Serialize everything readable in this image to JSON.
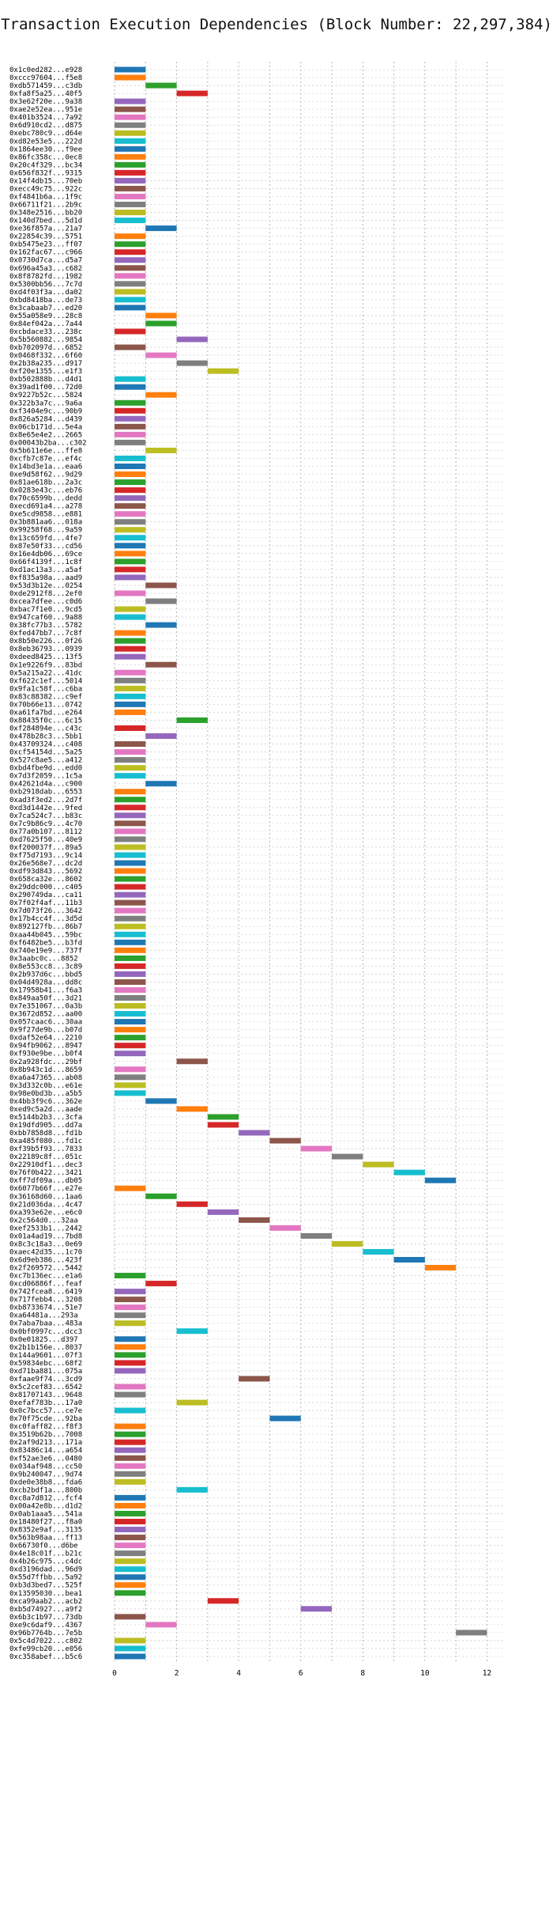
{
  "chart_data": {
    "type": "bar",
    "orientation": "horizontal",
    "title": "Transaction Execution Dependencies (Block Number: 22,297,384)",
    "xlabel": "",
    "ylabel": "",
    "xlim": [
      0,
      12.6
    ],
    "xticks": [
      0,
      2,
      4,
      6,
      8,
      10,
      12
    ],
    "grid": "vertical dotted",
    "legend": "none",
    "palette": [
      "#1f77b4",
      "#ff7f0e",
      "#2ca02c",
      "#d62728",
      "#9467bd",
      "#8c564b",
      "#e377c2",
      "#7f7f7f",
      "#bcbd22",
      "#17becf"
    ],
    "rows": [
      [
        "0x1c0ed282...e928",
        0
      ],
      [
        "0xccc97604...f5e8",
        0
      ],
      [
        "0xdb571459...c3db",
        1
      ],
      [
        "0xfa8f5a25...40f5",
        2
      ],
      [
        "0x3e62f20e...9a38",
        0
      ],
      [
        "0xae2e52ea...951e",
        0
      ],
      [
        "0x401b3524...7a92",
        0
      ],
      [
        "0x6d910cd2...d875",
        0
      ],
      [
        "0xebc780c9...d64e",
        0
      ],
      [
        "0xd82e53e5...222d",
        0
      ],
      [
        "0x1864ee30...f9ee",
        0
      ],
      [
        "0x86fc358c...0ec8",
        0
      ],
      [
        "0x20c4f329...bc34",
        0
      ],
      [
        "0x656f832f...9315",
        0
      ],
      [
        "0x14f4db15...70eb",
        0
      ],
      [
        "0xecc49c75...922c",
        0
      ],
      [
        "0xf4841b6a...1f9c",
        0
      ],
      [
        "0x66711f21...2b9c",
        0
      ],
      [
        "0x348e2516...bb20",
        0
      ],
      [
        "0x140d7bed...5d1d",
        0
      ],
      [
        "0xe36f857a...21a7",
        1
      ],
      [
        "0x22854c39...5751",
        0
      ],
      [
        "0xb5475e23...ff07",
        0
      ],
      [
        "0x162fac67...c966",
        0
      ],
      [
        "0x0730d7ca...d5a7",
        0
      ],
      [
        "0x696a45a3...c682",
        0
      ],
      [
        "0x8f8782fd...1982",
        0
      ],
      [
        "0x5300bb56...7c7d",
        0
      ],
      [
        "0xd4f03f3a...da02",
        0
      ],
      [
        "0xbd8418ba...de73",
        0
      ],
      [
        "0x3cabaab7...ed20",
        0
      ],
      [
        "0x55a058e9...28c8",
        1
      ],
      [
        "0x84ef042a...7a44",
        1
      ],
      [
        "0xcbdace33...238c",
        0
      ],
      [
        "0x5b560882...9854",
        2
      ],
      [
        "0xb702097d...6852",
        0
      ],
      [
        "0x0468f332...6f60",
        1
      ],
      [
        "0x2b38a235...d917",
        2
      ],
      [
        "0xf20e1355...e1f3",
        3
      ],
      [
        "0xb502888b...d4d1",
        0
      ],
      [
        "0x39ad1f00...72d0",
        0
      ],
      [
        "0x9227b52c...5824",
        1
      ],
      [
        "0x322b3a7c...9a6a",
        0
      ],
      [
        "0xf3404e9c...90b9",
        0
      ],
      [
        "0x826a5284...d439",
        0
      ],
      [
        "0x06cb171d...5e4a",
        0
      ],
      [
        "0x8e65e4e2...2665",
        0
      ],
      [
        "0x00043b2ba...c302",
        0
      ],
      [
        "0x5b611e6e...ffe8",
        1
      ],
      [
        "0xcfb7c87e...ef4c",
        0
      ],
      [
        "0x14bd3e1a...eaa6",
        0
      ],
      [
        "0xe9d58f62...9d29",
        0
      ],
      [
        "0x81ae618b...2a3c",
        0
      ],
      [
        "0x0283e43c...eb76",
        0
      ],
      [
        "0x70c6599b...dedd",
        0
      ],
      [
        "0xecd691a4...a278",
        0
      ],
      [
        "0xe5cd9858...e881",
        0
      ],
      [
        "0x3b881aa6...018a",
        0
      ],
      [
        "0x99258f68...9a59",
        0
      ],
      [
        "0x13c659fd...4fe7",
        0
      ],
      [
        "0x87e50f33...cd56",
        0
      ],
      [
        "0x16e4db06...69ce",
        0
      ],
      [
        "0x66f4139f...1c8f",
        0
      ],
      [
        "0xd1ac13a3...a5af",
        0
      ],
      [
        "0xf835a98a...aad9",
        0
      ],
      [
        "0x53d3b12e...0254",
        1
      ],
      [
        "0xde2912f8...2ef0",
        0
      ],
      [
        "0xcea7dfee...c0d6",
        1
      ],
      [
        "0xbac7f1e0...9cd5",
        0
      ],
      [
        "0x947caf60...9a88",
        0
      ],
      [
        "0x38fc77b3...5782",
        1
      ],
      [
        "0xfed47bb7...7c8f",
        0
      ],
      [
        "0x8b50e226...0f26",
        0
      ],
      [
        "0x8eb36793...0939",
        0
      ],
      [
        "0xdeed8425...13f5",
        0
      ],
      [
        "0x1e9226f9...83bd",
        1
      ],
      [
        "0x5a215a22...41dc",
        0
      ],
      [
        "0xf622c1ef...5014",
        0
      ],
      [
        "0x9fa1c58f...c6ba",
        0
      ],
      [
        "0x83c88382...c9ef",
        0
      ],
      [
        "0x70b66e13...0742",
        0
      ],
      [
        "0xa61fa7bd...e264",
        0
      ],
      [
        "0x88435f0c...6c15",
        2
      ],
      [
        "0xf284894e...c43c",
        0
      ],
      [
        "0x478b28c3...5bb1",
        1
      ],
      [
        "0x43709324...c408",
        0
      ],
      [
        "0xcf54154d...5a25",
        0
      ],
      [
        "0x527c8ae5...a412",
        0
      ],
      [
        "0xbd4fbe9d...edd0",
        0
      ],
      [
        "0x7d3f2059...1c5a",
        0
      ],
      [
        "0x42621d4a...c900",
        1
      ],
      [
        "0xb2918dab...6553",
        0
      ],
      [
        "0xad3f3ed2...2d7f",
        0
      ],
      [
        "0xd3d1442e...9fed",
        0
      ],
      [
        "0x7ca524c7...b83c",
        0
      ],
      [
        "0x7c9b86c9...4c70",
        0
      ],
      [
        "0x77a0b107...8112",
        0
      ],
      [
        "0xd7625f50...40e9",
        0
      ],
      [
        "0xf200037f...89a5",
        0
      ],
      [
        "0xf75d7193...9c14",
        0
      ],
      [
        "0x26e568e7...dc2d",
        0
      ],
      [
        "0xdf93d843...5692",
        0
      ],
      [
        "0x658ca32e...8602",
        0
      ],
      [
        "0x29ddc000...c405",
        0
      ],
      [
        "0x290749da...ca11",
        0
      ],
      [
        "0x7f02f4af...11b3",
        0
      ],
      [
        "0x7d073f26...3642",
        0
      ],
      [
        "0x17b4cc4f...3d5d",
        0
      ],
      [
        "0x892127fb...86b7",
        0
      ],
      [
        "0xaa44b045...59bc",
        0
      ],
      [
        "0xf6482be5...b3fd",
        0
      ],
      [
        "0x740e19e9...737f",
        0
      ],
      [
        "0x3aabc0c...8852",
        0
      ],
      [
        "0x8e553cc8...3c89",
        0
      ],
      [
        "0x2b937d6c...bbd5",
        0
      ],
      [
        "0x04d4928a...dd8c",
        0
      ],
      [
        "0x17958b41...f6a3",
        0
      ],
      [
        "0x849aa50f...3d21",
        0
      ],
      [
        "0x7e351067...0a3b",
        0
      ],
      [
        "0x3672d852...aa00",
        0
      ],
      [
        "0x057caac6...30aa",
        0
      ],
      [
        "0x9f27de9b...b07d",
        0
      ],
      [
        "0xdaf52e64...2210",
        0
      ],
      [
        "0x94fb9062...8947",
        0
      ],
      [
        "0xf930e9be...b0f4",
        0
      ],
      [
        "0x2a928fdc...29bf",
        2
      ],
      [
        "0x8b943c1d...8659",
        0
      ],
      [
        "0xa6a47365...ab08",
        0
      ],
      [
        "0x3d332c0b...e61e",
        0
      ],
      [
        "0x98e0bd3b...a5b5",
        0
      ],
      [
        "0x4bb3f9c6...362e",
        1
      ],
      [
        "0xed9c5a2d...aade",
        2
      ],
      [
        "0x5144b2b3...3cfa",
        3
      ],
      [
        "0x19dfd905...dd7a",
        3
      ],
      [
        "0xbb7858d8...fd1b",
        4
      ],
      [
        "0xa485f080...fd1c",
        5
      ],
      [
        "0xf39b5f93...7833",
        6
      ],
      [
        "0x22189c8f...051c",
        7
      ],
      [
        "0x22910df1...dec3",
        8
      ],
      [
        "0x76f0b422...3421",
        9
      ],
      [
        "0xff7df09a...db05",
        10
      ],
      [
        "0x6077b66f...e27e",
        0
      ],
      [
        "0x36168d60...1aa6",
        1
      ],
      [
        "0x21d036da...4c47",
        2
      ],
      [
        "0xa393e62e...e6c0",
        3
      ],
      [
        "0x2c564d0...32aa",
        4
      ],
      [
        "0xef2533b1...2442",
        5
      ],
      [
        "0x01a4ad19...7bd8",
        6
      ],
      [
        "0x8c3c18a3...0e69",
        7
      ],
      [
        "0xaec42d35...1c70",
        8
      ],
      [
        "0x6d9eb386...423f",
        9
      ],
      [
        "0x2f269572...5442",
        10
      ],
      [
        "0xc7b136ec...e1a6",
        0
      ],
      [
        "0xcd06886f...feaf",
        1
      ],
      [
        "0x742fcea8...6419",
        0
      ],
      [
        "0x717febb4...3208",
        0
      ],
      [
        "0xb8733674...51e7",
        0
      ],
      [
        "0xa64481a...293a",
        0
      ],
      [
        "0x7aba7baa...483a",
        0
      ],
      [
        "0x0bf0997c...dcc3",
        2
      ],
      [
        "0x0e01825...d397",
        0
      ],
      [
        "0x2b1b156e...8037",
        0
      ],
      [
        "0x144a9601...07f3",
        0
      ],
      [
        "0x59834ebc...68f2",
        0
      ],
      [
        "0xd71ba881...075a",
        0
      ],
      [
        "0xfaae9f74...3cd9",
        4
      ],
      [
        "0x5c2cef83...6542",
        0
      ],
      [
        "0x81707143...9648",
        0
      ],
      [
        "0xefaf783b...17a0",
        2
      ],
      [
        "0x0c7bcc57...ce7e",
        0
      ],
      [
        "0x70f75cde...92ba",
        5
      ],
      [
        "0xc0faff82...f8f3",
        0
      ],
      [
        "0x3519b62b...7008",
        0
      ],
      [
        "0x2af9d213...171a",
        0
      ],
      [
        "0x83486c14...a654",
        0
      ],
      [
        "0xf52ae3e6...0480",
        0
      ],
      [
        "0x034af948...cc50",
        0
      ],
      [
        "0x9b240047...9d74",
        0
      ],
      [
        "0xde0e38b8...fda6",
        0
      ],
      [
        "0xcb2bdf1a...800b",
        2
      ],
      [
        "0xc8a7d812...fcf4",
        0
      ],
      [
        "0x00a42e8b...d1d2",
        0
      ],
      [
        "0x0ab1aaa5...541a",
        0
      ],
      [
        "0x18480f27...f8a0",
        0
      ],
      [
        "0x8352e9af...3135",
        0
      ],
      [
        "0x563b98aa...ff13",
        0
      ],
      [
        "0x66730f0...d6be",
        0
      ],
      [
        "0x4e18c01f...b21c",
        0
      ],
      [
        "0x4b26c975...c4dc",
        0
      ],
      [
        "0xd3196dad...96d9",
        0
      ],
      [
        "0x55d7ffbb...5a92",
        0
      ],
      [
        "0xb3d3bed7...525f",
        0
      ],
      [
        "0x13595030...bea1",
        0
      ],
      [
        "0xca99aab2...acb2",
        3
      ],
      [
        "0xb5d74927...a9f2",
        6
      ],
      [
        "0x6b3c1b97...73db",
        0
      ],
      [
        "0xe9c6daf9...4367",
        1
      ],
      [
        "0x96b7764b...7e5b",
        11
      ],
      [
        "0x5c4d7022...c802",
        0
      ],
      [
        "0xfe99cb20...e056",
        0
      ],
      [
        "0xc358abef...b5c6",
        0
      ]
    ]
  }
}
